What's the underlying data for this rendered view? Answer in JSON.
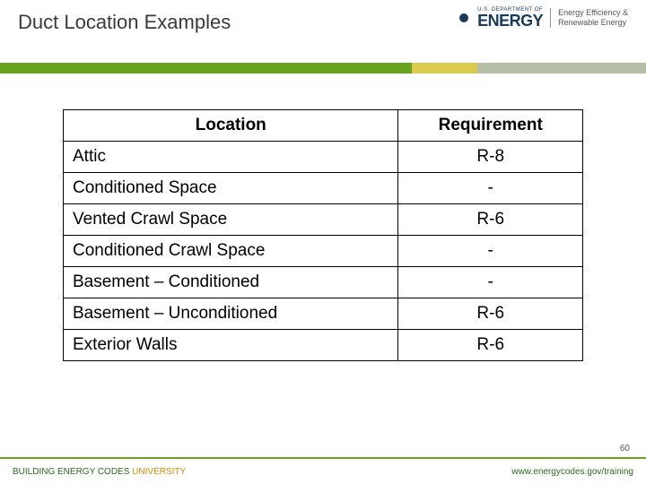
{
  "header": {
    "title": "Duct Location Examples",
    "doe_dept": "U.S. DEPARTMENT OF",
    "doe_energy": "ENERGY",
    "eere_line1": "Energy Efficiency &",
    "eere_line2": "Renewable Energy"
  },
  "colors": {
    "green_bar_1": "#6aa321",
    "green_bar_2": "#dcca4f",
    "green_bar_3": "#b8bfa8",
    "footer_rule": "#6aa321"
  },
  "table": {
    "col_location": "Location",
    "col_requirement": "Requirement",
    "rows": [
      {
        "location": "Attic",
        "requirement": "R-8"
      },
      {
        "location": "Conditioned Space",
        "requirement": "-"
      },
      {
        "location": "Vented Crawl Space",
        "requirement": "R-6"
      },
      {
        "location": "Conditioned Crawl Space",
        "requirement": "-"
      },
      {
        "location": "Basement – Conditioned",
        "requirement": "-"
      },
      {
        "location": "Basement – Unconditioned",
        "requirement": "R-6"
      },
      {
        "location": "Exterior Walls",
        "requirement": "R-6"
      }
    ]
  },
  "footer": {
    "left_1": "BUILDING ENERGY CODES",
    "left_2": " UNIVERSITY",
    "right": "www.energycodes.gov/training",
    "page_num": "60"
  }
}
